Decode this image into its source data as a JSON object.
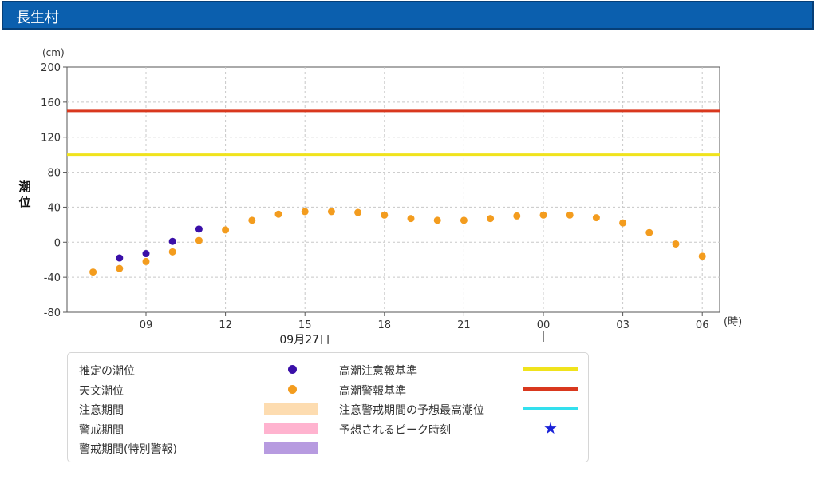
{
  "header": {
    "title": "長生村"
  },
  "chart_data": {
    "type": "scatter",
    "y_unit": "(cm)",
    "ylabel": "潮位",
    "x_unit": "(時)",
    "date_label": "09月27日",
    "ylim": [
      -80,
      200
    ],
    "yticks": [
      -80,
      -40,
      0,
      40,
      80,
      120,
      160,
      200
    ],
    "x_tick_labels": [
      "09",
      "12",
      "15",
      "18",
      "21",
      "00",
      "03",
      "06"
    ],
    "grid": true,
    "x_range_note": "hourly points from 07 on 09/27 through 06 on 09/28",
    "series": [
      {
        "name": "推定の潮位",
        "color": "#3a0fa8",
        "points": [
          {
            "time": "08",
            "value": -18
          },
          {
            "time": "09",
            "value": -13
          },
          {
            "time": "10",
            "value": 1
          },
          {
            "time": "11",
            "value": 15
          }
        ]
      },
      {
        "name": "天文潮位",
        "color": "#f39c1e",
        "points": [
          {
            "time": "07",
            "value": -34
          },
          {
            "time": "08",
            "value": -30
          },
          {
            "time": "09",
            "value": -22
          },
          {
            "time": "10",
            "value": -11
          },
          {
            "time": "11",
            "value": 2
          },
          {
            "time": "12",
            "value": 14
          },
          {
            "time": "13",
            "value": 25
          },
          {
            "time": "14",
            "value": 32
          },
          {
            "time": "15",
            "value": 35
          },
          {
            "time": "16",
            "value": 35
          },
          {
            "time": "17",
            "value": 34
          },
          {
            "time": "18",
            "value": 31
          },
          {
            "time": "19",
            "value": 27
          },
          {
            "time": "20",
            "value": 25
          },
          {
            "time": "21",
            "value": 25
          },
          {
            "time": "22",
            "value": 27
          },
          {
            "time": "23",
            "value": 30
          },
          {
            "time": "00",
            "value": 31
          },
          {
            "time": "01",
            "value": 31
          },
          {
            "time": "02",
            "value": 28
          },
          {
            "time": "03",
            "value": 22
          },
          {
            "time": "04",
            "value": 11
          },
          {
            "time": "05",
            "value": -2
          },
          {
            "time": "06",
            "value": -16
          }
        ]
      }
    ],
    "reference_lines": [
      {
        "name": "高潮注意報基準",
        "value": 100,
        "color": "#f0e31c"
      },
      {
        "name": "高潮警報基準",
        "value": 150,
        "color": "#d9381e"
      }
    ]
  },
  "legend": {
    "estimated": {
      "label": "推定の潮位",
      "color": "#3a0fa8"
    },
    "astronomical": {
      "label": "天文潮位",
      "color": "#f39c1e"
    },
    "caution_period": {
      "label": "注意期間",
      "color": "#fddcb0"
    },
    "warning_period": {
      "label": "警戒期間",
      "color": "#ffb3cf"
    },
    "special_warning_period": {
      "label": "警戒期間(特別警報)",
      "color": "#b79be0"
    },
    "advisory_line": {
      "label": "高潮注意報基準",
      "color": "#f0e31c"
    },
    "warning_line": {
      "label": "高潮警報基準",
      "color": "#d9381e"
    },
    "max_tide": {
      "label": "注意警戒期間の予想最高潮位",
      "color": "#33e0ee"
    },
    "peak_time": {
      "label": "予想されるピーク時刻",
      "color": "#1a22d8",
      "icon": "star-icon"
    }
  }
}
